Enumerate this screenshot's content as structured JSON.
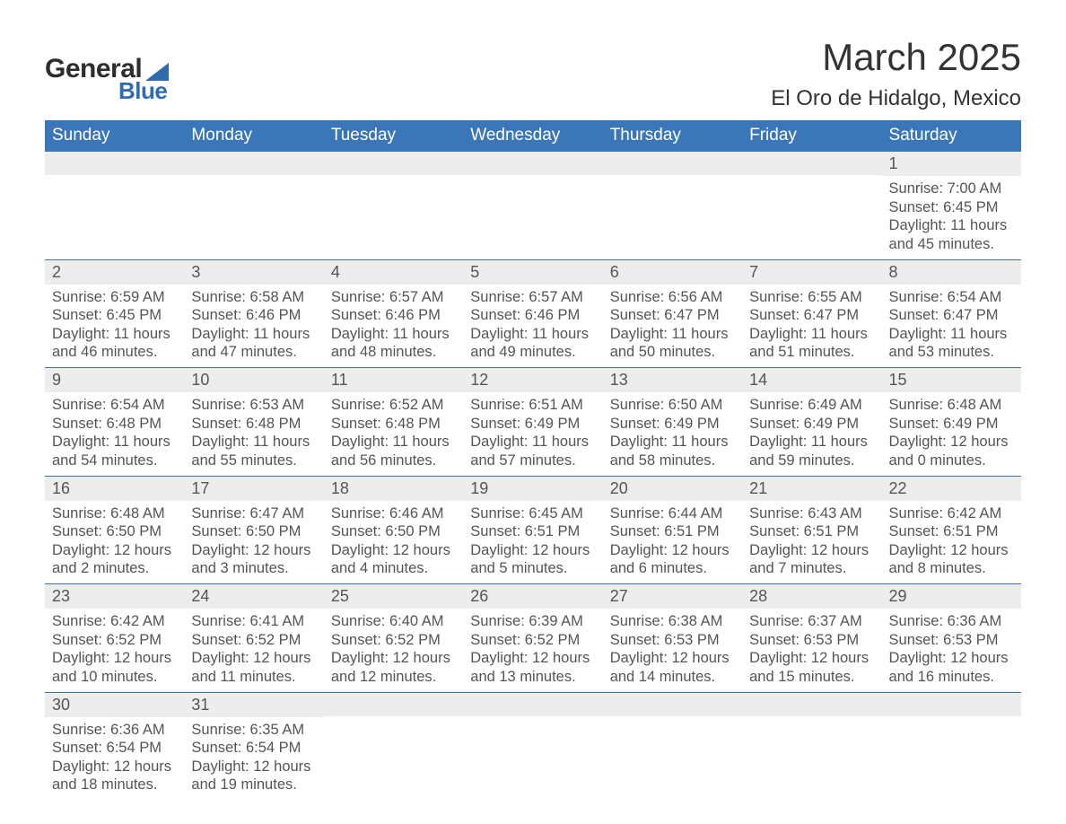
{
  "logo": {
    "text_general": "General",
    "text_blue": "Blue"
  },
  "title": "March 2025",
  "location": "El Oro de Hidalgo, Mexico",
  "colors": {
    "header_bg": "#3b77b8",
    "header_text": "#ffffff",
    "daynum_bg": "#ededed",
    "body_text": "#555555",
    "accent": "#2f6cad"
  },
  "typography": {
    "title_fontsize": 42,
    "location_fontsize": 24,
    "dow_fontsize": 19,
    "daynum_fontsize": 18,
    "content_fontsize": 16.5
  },
  "days_of_week": [
    "Sunday",
    "Monday",
    "Tuesday",
    "Wednesday",
    "Thursday",
    "Friday",
    "Saturday"
  ],
  "weeks": [
    [
      {
        "empty": true
      },
      {
        "empty": true
      },
      {
        "empty": true
      },
      {
        "empty": true
      },
      {
        "empty": true
      },
      {
        "empty": true
      },
      {
        "num": "1",
        "sunrise": "Sunrise: 7:00 AM",
        "sunset": "Sunset: 6:45 PM",
        "daylight1": "Daylight: 11 hours",
        "daylight2": "and 45 minutes."
      }
    ],
    [
      {
        "num": "2",
        "sunrise": "Sunrise: 6:59 AM",
        "sunset": "Sunset: 6:45 PM",
        "daylight1": "Daylight: 11 hours",
        "daylight2": "and 46 minutes."
      },
      {
        "num": "3",
        "sunrise": "Sunrise: 6:58 AM",
        "sunset": "Sunset: 6:46 PM",
        "daylight1": "Daylight: 11 hours",
        "daylight2": "and 47 minutes."
      },
      {
        "num": "4",
        "sunrise": "Sunrise: 6:57 AM",
        "sunset": "Sunset: 6:46 PM",
        "daylight1": "Daylight: 11 hours",
        "daylight2": "and 48 minutes."
      },
      {
        "num": "5",
        "sunrise": "Sunrise: 6:57 AM",
        "sunset": "Sunset: 6:46 PM",
        "daylight1": "Daylight: 11 hours",
        "daylight2": "and 49 minutes."
      },
      {
        "num": "6",
        "sunrise": "Sunrise: 6:56 AM",
        "sunset": "Sunset: 6:47 PM",
        "daylight1": "Daylight: 11 hours",
        "daylight2": "and 50 minutes."
      },
      {
        "num": "7",
        "sunrise": "Sunrise: 6:55 AM",
        "sunset": "Sunset: 6:47 PM",
        "daylight1": "Daylight: 11 hours",
        "daylight2": "and 51 minutes."
      },
      {
        "num": "8",
        "sunrise": "Sunrise: 6:54 AM",
        "sunset": "Sunset: 6:47 PM",
        "daylight1": "Daylight: 11 hours",
        "daylight2": "and 53 minutes."
      }
    ],
    [
      {
        "num": "9",
        "sunrise": "Sunrise: 6:54 AM",
        "sunset": "Sunset: 6:48 PM",
        "daylight1": "Daylight: 11 hours",
        "daylight2": "and 54 minutes."
      },
      {
        "num": "10",
        "sunrise": "Sunrise: 6:53 AM",
        "sunset": "Sunset: 6:48 PM",
        "daylight1": "Daylight: 11 hours",
        "daylight2": "and 55 minutes."
      },
      {
        "num": "11",
        "sunrise": "Sunrise: 6:52 AM",
        "sunset": "Sunset: 6:48 PM",
        "daylight1": "Daylight: 11 hours",
        "daylight2": "and 56 minutes."
      },
      {
        "num": "12",
        "sunrise": "Sunrise: 6:51 AM",
        "sunset": "Sunset: 6:49 PM",
        "daylight1": "Daylight: 11 hours",
        "daylight2": "and 57 minutes."
      },
      {
        "num": "13",
        "sunrise": "Sunrise: 6:50 AM",
        "sunset": "Sunset: 6:49 PM",
        "daylight1": "Daylight: 11 hours",
        "daylight2": "and 58 minutes."
      },
      {
        "num": "14",
        "sunrise": "Sunrise: 6:49 AM",
        "sunset": "Sunset: 6:49 PM",
        "daylight1": "Daylight: 11 hours",
        "daylight2": "and 59 minutes."
      },
      {
        "num": "15",
        "sunrise": "Sunrise: 6:48 AM",
        "sunset": "Sunset: 6:49 PM",
        "daylight1": "Daylight: 12 hours",
        "daylight2": "and 0 minutes."
      }
    ],
    [
      {
        "num": "16",
        "sunrise": "Sunrise: 6:48 AM",
        "sunset": "Sunset: 6:50 PM",
        "daylight1": "Daylight: 12 hours",
        "daylight2": "and 2 minutes."
      },
      {
        "num": "17",
        "sunrise": "Sunrise: 6:47 AM",
        "sunset": "Sunset: 6:50 PM",
        "daylight1": "Daylight: 12 hours",
        "daylight2": "and 3 minutes."
      },
      {
        "num": "18",
        "sunrise": "Sunrise: 6:46 AM",
        "sunset": "Sunset: 6:50 PM",
        "daylight1": "Daylight: 12 hours",
        "daylight2": "and 4 minutes."
      },
      {
        "num": "19",
        "sunrise": "Sunrise: 6:45 AM",
        "sunset": "Sunset: 6:51 PM",
        "daylight1": "Daylight: 12 hours",
        "daylight2": "and 5 minutes."
      },
      {
        "num": "20",
        "sunrise": "Sunrise: 6:44 AM",
        "sunset": "Sunset: 6:51 PM",
        "daylight1": "Daylight: 12 hours",
        "daylight2": "and 6 minutes."
      },
      {
        "num": "21",
        "sunrise": "Sunrise: 6:43 AM",
        "sunset": "Sunset: 6:51 PM",
        "daylight1": "Daylight: 12 hours",
        "daylight2": "and 7 minutes."
      },
      {
        "num": "22",
        "sunrise": "Sunrise: 6:42 AM",
        "sunset": "Sunset: 6:51 PM",
        "daylight1": "Daylight: 12 hours",
        "daylight2": "and 8 minutes."
      }
    ],
    [
      {
        "num": "23",
        "sunrise": "Sunrise: 6:42 AM",
        "sunset": "Sunset: 6:52 PM",
        "daylight1": "Daylight: 12 hours",
        "daylight2": "and 10 minutes."
      },
      {
        "num": "24",
        "sunrise": "Sunrise: 6:41 AM",
        "sunset": "Sunset: 6:52 PM",
        "daylight1": "Daylight: 12 hours",
        "daylight2": "and 11 minutes."
      },
      {
        "num": "25",
        "sunrise": "Sunrise: 6:40 AM",
        "sunset": "Sunset: 6:52 PM",
        "daylight1": "Daylight: 12 hours",
        "daylight2": "and 12 minutes."
      },
      {
        "num": "26",
        "sunrise": "Sunrise: 6:39 AM",
        "sunset": "Sunset: 6:52 PM",
        "daylight1": "Daylight: 12 hours",
        "daylight2": "and 13 minutes."
      },
      {
        "num": "27",
        "sunrise": "Sunrise: 6:38 AM",
        "sunset": "Sunset: 6:53 PM",
        "daylight1": "Daylight: 12 hours",
        "daylight2": "and 14 minutes."
      },
      {
        "num": "28",
        "sunrise": "Sunrise: 6:37 AM",
        "sunset": "Sunset: 6:53 PM",
        "daylight1": "Daylight: 12 hours",
        "daylight2": "and 15 minutes."
      },
      {
        "num": "29",
        "sunrise": "Sunrise: 6:36 AM",
        "sunset": "Sunset: 6:53 PM",
        "daylight1": "Daylight: 12 hours",
        "daylight2": "and 16 minutes."
      }
    ],
    [
      {
        "num": "30",
        "sunrise": "Sunrise: 6:36 AM",
        "sunset": "Sunset: 6:54 PM",
        "daylight1": "Daylight: 12 hours",
        "daylight2": "and 18 minutes."
      },
      {
        "num": "31",
        "sunrise": "Sunrise: 6:35 AM",
        "sunset": "Sunset: 6:54 PM",
        "daylight1": "Daylight: 12 hours",
        "daylight2": "and 19 minutes."
      },
      {
        "empty": true
      },
      {
        "empty": true
      },
      {
        "empty": true
      },
      {
        "empty": true
      },
      {
        "empty": true
      }
    ]
  ]
}
